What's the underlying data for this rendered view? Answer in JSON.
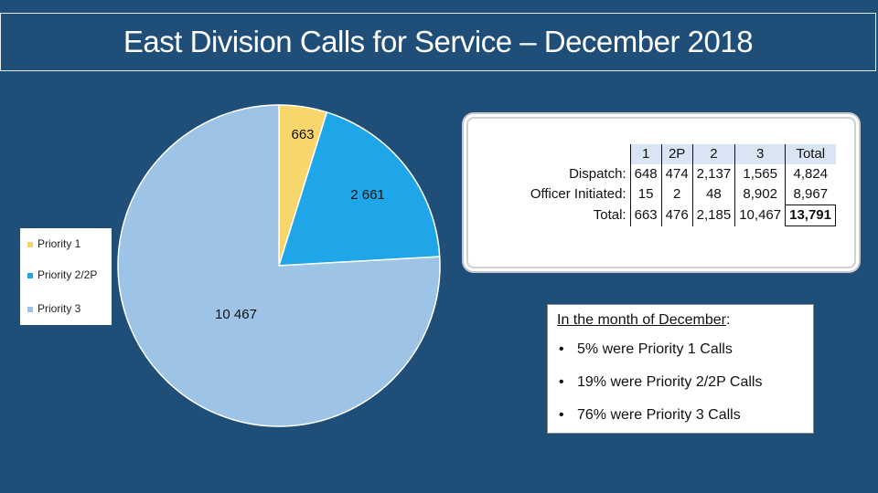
{
  "title": "East Division Calls for Service – December 2018",
  "colors": {
    "background": "#1f4e79",
    "priority1": "#f9d66b",
    "priority22p": "#1fa6e8",
    "priority3": "#9dc3e6"
  },
  "chart_data": {
    "type": "pie",
    "title": "",
    "categories": [
      "Priority 1",
      "Priority 2/2P",
      "Priority 3"
    ],
    "values": [
      663,
      2661,
      10467
    ],
    "data_labels": [
      "663",
      "2 661",
      "10 467"
    ],
    "legend_position": "left"
  },
  "table": {
    "columns": [
      "1",
      "2P",
      "2",
      "3",
      "Total"
    ],
    "rows": [
      {
        "label": "Dispatch:",
        "cells": [
          "648",
          "474",
          "2,137",
          "1,565",
          "4,824"
        ]
      },
      {
        "label": "Officer Initiated:",
        "cells": [
          "15",
          "2",
          "48",
          "8,902",
          "8,967"
        ]
      },
      {
        "label": "Total:",
        "cells": [
          "663",
          "476",
          "2,185",
          "10,467",
          "13,791"
        ]
      }
    ]
  },
  "summary": {
    "heading_underlined": "In the month of December",
    "heading_suffix": ":",
    "bullet_char": "•",
    "bullets": [
      "5% were Priority 1 Calls",
      "19% were Priority 2/2P Calls",
      "76% were Priority 3 Calls"
    ]
  }
}
